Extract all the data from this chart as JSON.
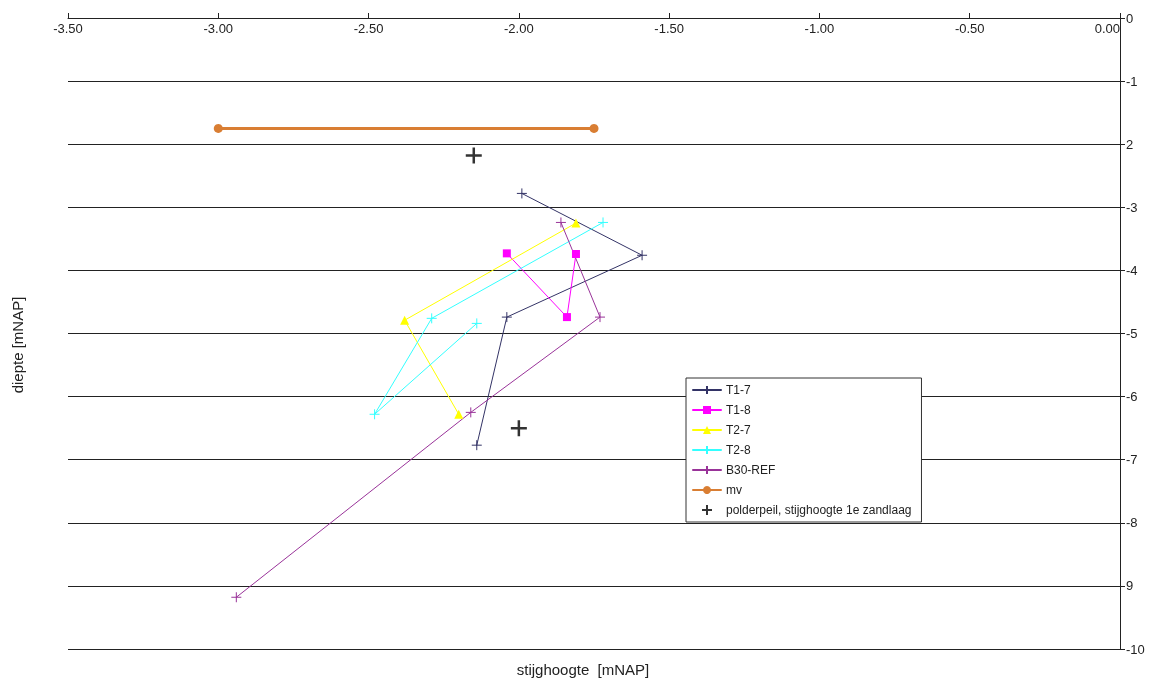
{
  "chart_data": {
    "type": "line",
    "xlabel": "stijghoogte  [mNAP]",
    "ylabel": "diepte [mNAP]",
    "xlim": [
      -3.5,
      0
    ],
    "ylim": [
      -10,
      0
    ],
    "xticks": [
      {
        "value": -3.5,
        "label": "-3.50"
      },
      {
        "value": -3,
        "label": "-3.00"
      },
      {
        "value": -2.5,
        "label": "-2.50"
      },
      {
        "value": -2,
        "label": "-2.00"
      },
      {
        "value": -1.5,
        "label": "-1.50"
      },
      {
        "value": -1,
        "label": "-1.00"
      },
      {
        "value": -0.5,
        "label": "-0.50"
      },
      {
        "value": 0,
        "label": "0.00"
      }
    ],
    "yticks": [
      -10,
      {
        "value": -9,
        "label": "9"
      },
      -8,
      -7,
      -6,
      -5,
      -4,
      -3,
      {
        "value": -2,
        "label": "2"
      },
      -1,
      0
    ],
    "grid": "y",
    "legend": "bottom right",
    "series": [
      {
        "name": "T1-7",
        "color": "#333366",
        "marker": "cross",
        "x": [
          -1.99,
          -1.59,
          -2.04,
          -2.14
        ],
        "values": [
          -2.78,
          -3.76,
          -4.74,
          -6.77
        ]
      },
      {
        "name": "T1-8",
        "color": "#ff00ff",
        "marker": "square",
        "x": [
          -2.04,
          -1.84,
          -1.81
        ],
        "values": [
          -3.73,
          -4.74,
          -3.74
        ]
      },
      {
        "name": "T2-7",
        "color": "#ffff00",
        "marker": "triangle",
        "x": [
          -1.81,
          -2.38,
          -2.2
        ],
        "values": [
          -3.25,
          -4.79,
          -6.28
        ]
      },
      {
        "name": "T2-8",
        "color": "#33ffff",
        "marker": "cross",
        "x": [
          -1.72,
          -2.29,
          -2.48,
          -2.14
        ],
        "values": [
          -3.24,
          -4.76,
          -6.28,
          -4.84
        ]
      },
      {
        "name": "B30-REF",
        "color": "#993399",
        "marker": "cross",
        "x": [
          -1.86,
          -1.73,
          -2.16,
          -2.94
        ],
        "values": [
          -3.24,
          -4.74,
          -6.25,
          -9.18
        ]
      },
      {
        "name": "mv",
        "color": "#d97e33",
        "marker": "circle",
        "x": [
          -3.0,
          -1.75
        ],
        "values": [
          -1.75,
          -1.75
        ]
      },
      {
        "name": "polderpeil, stijghoogte 1e zandlaag",
        "type": "scatter",
        "color": "#000000",
        "marker": "cross",
        "x": [
          -2.15,
          -2.0
        ],
        "values": [
          -2.18,
          -6.5
        ]
      }
    ]
  }
}
